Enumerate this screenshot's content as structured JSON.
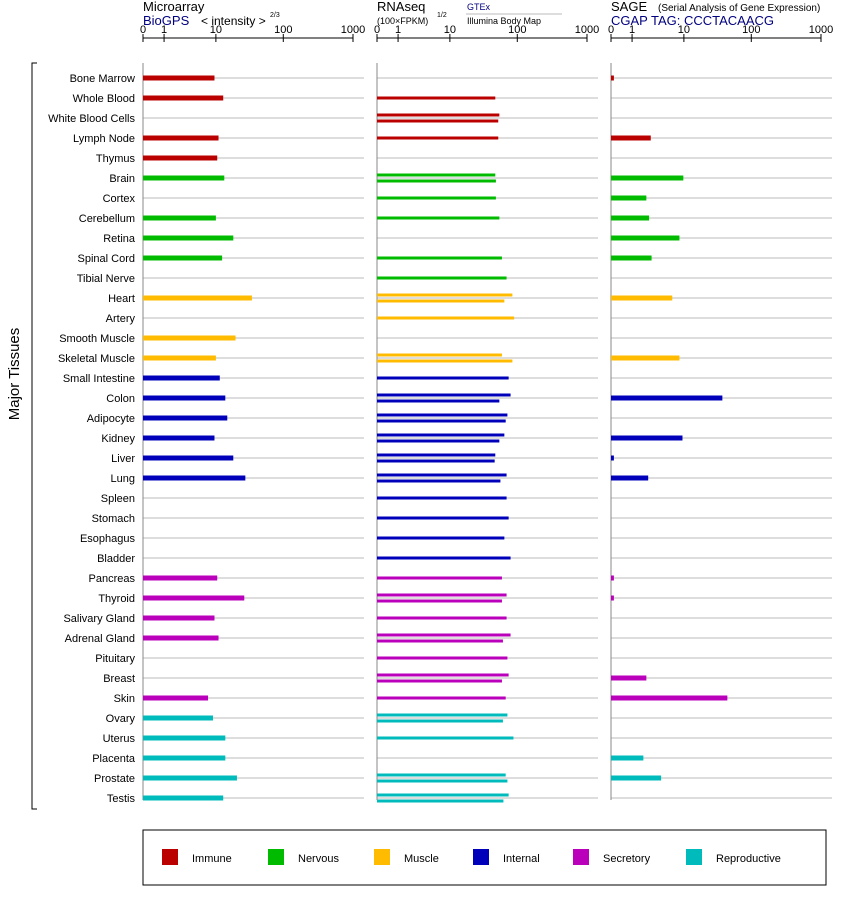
{
  "side_label": "Major Tissues",
  "categories": {
    "Immune": "#bb0000",
    "Nervous": "#00bb00",
    "Muscle": "#ffbb00",
    "Internal": "#0000bb",
    "Secretory": "#bb00bb",
    "Reproductive": "#00bbbb"
  },
  "legend": [
    {
      "label": "Immune",
      "color": "#bb0000"
    },
    {
      "label": "Nervous",
      "color": "#00bb00"
    },
    {
      "label": "Muscle",
      "color": "#ffbb00"
    },
    {
      "label": "Internal",
      "color": "#0000bb"
    },
    {
      "label": "Secretory",
      "color": "#bb00bb"
    },
    {
      "label": "Reproductive",
      "color": "#00bbbb"
    }
  ],
  "tissues": [
    {
      "name": "Bone Marrow",
      "category": "Immune"
    },
    {
      "name": "Whole Blood",
      "category": "Immune"
    },
    {
      "name": "White Blood Cells",
      "category": "Immune"
    },
    {
      "name": "Lymph Node",
      "category": "Immune"
    },
    {
      "name": "Thymus",
      "category": "Immune"
    },
    {
      "name": "Brain",
      "category": "Nervous"
    },
    {
      "name": "Cortex",
      "category": "Nervous"
    },
    {
      "name": "Cerebellum",
      "category": "Nervous"
    },
    {
      "name": "Retina",
      "category": "Nervous"
    },
    {
      "name": "Spinal Cord",
      "category": "Nervous"
    },
    {
      "name": "Tibial Nerve",
      "category": "Nervous"
    },
    {
      "name": "Heart",
      "category": "Muscle"
    },
    {
      "name": "Artery",
      "category": "Muscle"
    },
    {
      "name": "Smooth Muscle",
      "category": "Muscle"
    },
    {
      "name": "Skeletal Muscle",
      "category": "Muscle"
    },
    {
      "name": "Small Intestine",
      "category": "Internal"
    },
    {
      "name": "Colon",
      "category": "Internal"
    },
    {
      "name": "Adipocyte",
      "category": "Internal"
    },
    {
      "name": "Kidney",
      "category": "Internal"
    },
    {
      "name": "Liver",
      "category": "Internal"
    },
    {
      "name": "Lung",
      "category": "Internal"
    },
    {
      "name": "Spleen",
      "category": "Internal"
    },
    {
      "name": "Stomach",
      "category": "Internal"
    },
    {
      "name": "Esophagus",
      "category": "Internal"
    },
    {
      "name": "Bladder",
      "category": "Internal"
    },
    {
      "name": "Pancreas",
      "category": "Secretory"
    },
    {
      "name": "Thyroid",
      "category": "Secretory"
    },
    {
      "name": "Salivary Gland",
      "category": "Secretory"
    },
    {
      "name": "Adrenal Gland",
      "category": "Secretory"
    },
    {
      "name": "Pituitary",
      "category": "Secretory"
    },
    {
      "name": "Breast",
      "category": "Secretory"
    },
    {
      "name": "Skin",
      "category": "Secretory"
    },
    {
      "name": "Ovary",
      "category": "Reproductive"
    },
    {
      "name": "Uterus",
      "category": "Reproductive"
    },
    {
      "name": "Placenta",
      "category": "Reproductive"
    },
    {
      "name": "Prostate",
      "category": "Reproductive"
    },
    {
      "name": "Testis",
      "category": "Reproductive"
    }
  ],
  "chart_data": [
    {
      "type": "bar",
      "title": "Microarray",
      "subtitle_source": "BioGPS",
      "subtitle_unit": "< intensity >",
      "subtitle_exponent": "2/3",
      "x_scale": "log",
      "x_ticks": [
        "0",
        "1",
        "10",
        "100",
        "1000"
      ],
      "xlim": [
        0,
        1000
      ],
      "categories": [
        "Bone Marrow",
        "Whole Blood",
        "White Blood Cells",
        "Lymph Node",
        "Thymus",
        "Brain",
        "Cortex",
        "Cerebellum",
        "Retina",
        "Spinal Cord",
        "Tibial Nerve",
        "Heart",
        "Artery",
        "Smooth Muscle",
        "Skeletal Muscle",
        "Small Intestine",
        "Colon",
        "Adipocyte",
        "Kidney",
        "Liver",
        "Lung",
        "Spleen",
        "Stomach",
        "Esophagus",
        "Bladder",
        "Pancreas",
        "Thyroid",
        "Salivary Gland",
        "Adrenal Gland",
        "Pituitary",
        "Breast",
        "Skin",
        "Ovary",
        "Uterus",
        "Placenta",
        "Prostate",
        "Testis"
      ],
      "values": [
        [
          9.5
        ],
        [
          13
        ],
        [],
        [
          11
        ],
        [
          10.5
        ],
        [
          13.5
        ],
        [],
        [
          10
        ],
        [
          18.5
        ],
        [
          12.5
        ],
        [],
        [
          35
        ],
        [],
        [
          20
        ],
        [
          10
        ],
        [
          11.5
        ],
        [
          14
        ],
        [
          15
        ],
        [
          9.5
        ],
        [
          18.5
        ],
        [
          28
        ],
        [],
        [],
        [],
        [],
        [
          10.5
        ],
        [
          27
        ],
        [
          9.5
        ],
        [
          11
        ],
        [],
        [],
        [
          7.5
        ],
        [
          9
        ],
        [
          14
        ],
        [
          14
        ],
        [
          21
        ],
        [
          13
        ]
      ]
    },
    {
      "type": "bar",
      "title": "RNAseq",
      "subtitle_unit": "(100×FPKM)",
      "subtitle_exponent": "1/2",
      "source": "GTEx",
      "source_detail": "Illumina Body Map",
      "x_scale": "log",
      "x_ticks": [
        "0",
        "1",
        "10",
        "100",
        "1000"
      ],
      "xlim": [
        0,
        1000
      ],
      "categories": [
        "Bone Marrow",
        "Whole Blood",
        "White Blood Cells",
        "Lymph Node",
        "Thymus",
        "Brain",
        "Cortex",
        "Cerebellum",
        "Retina",
        "Spinal Cord",
        "Tibial Nerve",
        "Heart",
        "Artery",
        "Smooth Muscle",
        "Skeletal Muscle",
        "Small Intestine",
        "Colon",
        "Adipocyte",
        "Kidney",
        "Liver",
        "Lung",
        "Spleen",
        "Stomach",
        "Esophagus",
        "Bladder",
        "Pancreas",
        "Thyroid",
        "Salivary Gland",
        "Adrenal Gland",
        "Pituitary",
        "Breast",
        "Skin",
        "Ovary",
        "Uterus",
        "Placenta",
        "Prostate",
        "Testis"
      ],
      "values": [
        [],
        [
          48
        ],
        [
          55,
          53
        ],
        [
          53
        ],
        [],
        [
          48,
          49
        ],
        [
          49
        ],
        [
          55
        ],
        [],
        [
          60
        ],
        [
          70
        ],
        [
          85,
          65
        ],
        [
          90
        ],
        [],
        [
          60,
          85
        ],
        [
          75
        ],
        [
          80,
          55
        ],
        [
          72,
          68
        ],
        [
          65,
          55
        ],
        [
          48,
          47
        ],
        [
          70,
          57
        ],
        [
          70
        ],
        [
          75
        ],
        [
          65
        ],
        [
          80
        ],
        [
          60
        ],
        [
          70,
          60
        ],
        [
          70
        ],
        [
          80,
          62
        ],
        [
          72
        ],
        [
          75,
          60
        ],
        [
          68
        ],
        [
          72,
          62
        ],
        [
          88
        ],
        [],
        [
          68,
          72
        ],
        [
          75,
          63
        ]
      ]
    },
    {
      "type": "bar",
      "title": "SAGE",
      "subtitle_note": "(Serial Analysis of Gene Expression)",
      "tag_label": "CGAP TAG: CCCTACAACG",
      "x_scale": "log",
      "x_ticks": [
        "0",
        "1",
        "10",
        "100",
        "1000"
      ],
      "xlim": [
        0,
        1000
      ],
      "categories": [
        "Bone Marrow",
        "Whole Blood",
        "White Blood Cells",
        "Lymph Node",
        "Thymus",
        "Brain",
        "Cortex",
        "Cerebellum",
        "Retina",
        "Spinal Cord",
        "Tibial Nerve",
        "Heart",
        "Artery",
        "Smooth Muscle",
        "Skeletal Muscle",
        "Small Intestine",
        "Colon",
        "Adipocyte",
        "Kidney",
        "Liver",
        "Lung",
        "Spleen",
        "Stomach",
        "Esophagus",
        "Bladder",
        "Pancreas",
        "Thyroid",
        "Salivary Gland",
        "Adrenal Gland",
        "Pituitary",
        "Breast",
        "Skin",
        "Ovary",
        "Uterus",
        "Placenta",
        "Prostate",
        "Testis"
      ],
      "values": [
        [
          0.1
        ],
        [],
        [],
        [
          2.7
        ],
        [],
        [
          9.8
        ],
        [
          2.2
        ],
        [
          2.5
        ],
        [
          8.5
        ],
        [
          2.8
        ],
        [],
        [
          6.5
        ],
        [],
        [],
        [
          8.5
        ],
        [],
        [
          38
        ],
        [],
        [
          9.5
        ],
        [
          0.1
        ],
        [
          2.4
        ],
        [],
        [],
        [],
        [],
        [
          0.1
        ],
        [
          0.1
        ],
        [],
        [],
        [],
        [
          2.2
        ],
        [
          45
        ],
        [],
        [],
        [
          1.9
        ],
        [
          4.2
        ],
        []
      ]
    }
  ]
}
